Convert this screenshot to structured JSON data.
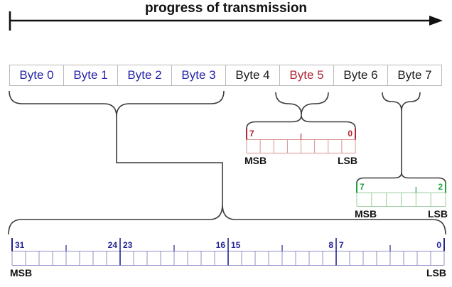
{
  "title": "progress of transmission",
  "colors": {
    "blue": "#2626a8",
    "red": "#b42432",
    "green": "#1fa342",
    "black": "#1c1c1c",
    "blue_dark": "#232394",
    "grid_red": "#d89494",
    "grid_green": "#9bcc9b",
    "grid_blue": "#9191c6",
    "byte_border": "#b9b9b9",
    "line": "#3c3c3c",
    "arrow": "#111111"
  },
  "byte_row": {
    "cells": [
      {
        "label": "Byte 0",
        "color": "blue"
      },
      {
        "label": "Byte 1",
        "color": "blue"
      },
      {
        "label": "Byte 2",
        "color": "blue"
      },
      {
        "label": "Byte 3",
        "color": "blue"
      },
      {
        "label": "Byte 4",
        "color": "black"
      },
      {
        "label": "Byte 5",
        "color": "red"
      },
      {
        "label": "Byte 6",
        "color": "black"
      },
      {
        "label": "Byte 7",
        "color": "black"
      }
    ]
  },
  "bit_fields": [
    {
      "id": "byte5_bits",
      "name": "byte5-bit-field",
      "bits": 8,
      "label_color": "red",
      "grid_color": "grid_red",
      "markers": [
        {
          "cell": 0,
          "side": "after",
          "text": "7"
        },
        {
          "cell": 8,
          "side": "before",
          "text": "0"
        }
      ],
      "tall_ticks": [],
      "mid_ticks": [
        4
      ],
      "msb": "MSB",
      "lsb": "LSB"
    },
    {
      "id": "byte7_bits",
      "name": "byte7-bit-field",
      "bits": 6,
      "label_color": "green",
      "grid_color": "grid_green",
      "markers": [
        {
          "cell": 0,
          "side": "after",
          "text": "7"
        },
        {
          "cell": 6,
          "side": "before",
          "text": "2"
        }
      ],
      "tall_ticks": [],
      "mid_ticks": [
        4
      ],
      "msb": "MSB",
      "lsb": "LSB"
    },
    {
      "id": "word_bits",
      "name": "word-bit-field",
      "bits": 32,
      "label_color": "blue_dark",
      "grid_color": "grid_blue",
      "markers": [
        {
          "cell": 0,
          "side": "after",
          "text": "31"
        },
        {
          "cell": 8,
          "side": "before",
          "text": "24"
        },
        {
          "cell": 8,
          "side": "after",
          "text": "23"
        },
        {
          "cell": 16,
          "side": "before",
          "text": "16"
        },
        {
          "cell": 16,
          "side": "after",
          "text": "15"
        },
        {
          "cell": 24,
          "side": "before",
          "text": "8"
        },
        {
          "cell": 24,
          "side": "after",
          "text": "7"
        },
        {
          "cell": 32,
          "side": "before",
          "text": "0"
        }
      ],
      "tall_ticks": [
        8,
        16,
        24
      ],
      "mid_ticks": [
        4,
        12,
        20,
        28
      ],
      "msb": "MSB",
      "lsb": "LSB"
    }
  ]
}
